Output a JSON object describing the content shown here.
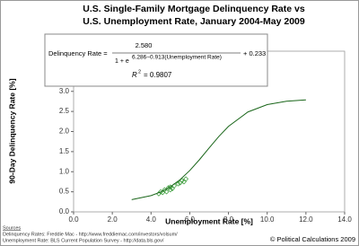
{
  "chart_data": {
    "type": "scatter",
    "title": "U.S. Single-Family Mortgage Delinquency Rate vs",
    "subtitle": "U.S. Unemployment Rate, January 2004-May 2009",
    "x_label": "Unemployment Rate [%]",
    "y_label": "90-Day Delinquency Rate [%]",
    "xlim": [
      0,
      14
    ],
    "ylim": [
      0,
      4
    ],
    "xticks": [
      {
        "value": 0,
        "label": "0.0"
      },
      {
        "value": 2,
        "label": "2.0"
      },
      {
        "value": 4,
        "label": "4.0"
      },
      {
        "value": 6,
        "label": "6.0"
      },
      {
        "value": 8,
        "label": "8.0"
      },
      {
        "value": 10,
        "label": "10.0"
      },
      {
        "value": 12,
        "label": "12.0"
      },
      {
        "value": 14,
        "label": "14.0"
      }
    ],
    "yticks": [
      {
        "value": 0,
        "label": "0.0"
      },
      {
        "value": 0.5,
        "label": "0.5"
      },
      {
        "value": 1,
        "label": "1.0"
      },
      {
        "value": 1.5,
        "label": "1.5"
      },
      {
        "value": 2,
        "label": "2.0"
      },
      {
        "value": 2.5,
        "label": "2.5"
      },
      {
        "value": 3,
        "label": "3.0"
      },
      {
        "value": 3.5,
        "label": "3.5"
      },
      {
        "value": 4,
        "label": "4.0"
      }
    ],
    "grid": false,
    "series": [
      {
        "type": "scatter",
        "color": "#339933",
        "x": [
          4.4,
          4.5,
          4.6,
          4.7,
          4.8,
          4.9,
          5.0,
          5.0,
          5.1,
          5.2,
          5.4,
          5.5,
          5.6,
          5.7,
          5.8
        ],
        "values": [
          0.45,
          0.5,
          0.48,
          0.55,
          0.5,
          0.6,
          0.55,
          0.62,
          0.58,
          0.65,
          0.7,
          0.72,
          0.78,
          0.75,
          0.82
        ]
      },
      {
        "type": "line",
        "color": "#1a661a",
        "x": [
          3,
          4,
          4.5,
          5,
          5.5,
          6,
          6.5,
          7,
          7.5,
          8,
          9,
          10,
          11,
          12
        ],
        "values": [
          0.305,
          0.406,
          0.496,
          0.625,
          0.801,
          1.029,
          1.299,
          1.591,
          1.876,
          2.128,
          2.486,
          2.671,
          2.754,
          2.789
        ]
      }
    ],
    "annotation": {
      "lhs": "Delinquency Rate =",
      "numerator": "2.580",
      "denominator": "1 + e",
      "exponent": "6.286−0.913(Unemployment Rate)",
      "tail": "+ 0.233",
      "r2_base": "R",
      "r2_power": "2",
      "r2_value": "= 0.9807"
    },
    "footer": {
      "sources_heading": "Sources",
      "source_1": "Delinquency Rates: Freddie Mac - http://www.freddiemac.com/investors/volsum/",
      "source_2": "Unemployment Rate: BLS Current Population Survey - http://data.bls.gov/",
      "copyright": "© Political Calculations 2009"
    }
  }
}
